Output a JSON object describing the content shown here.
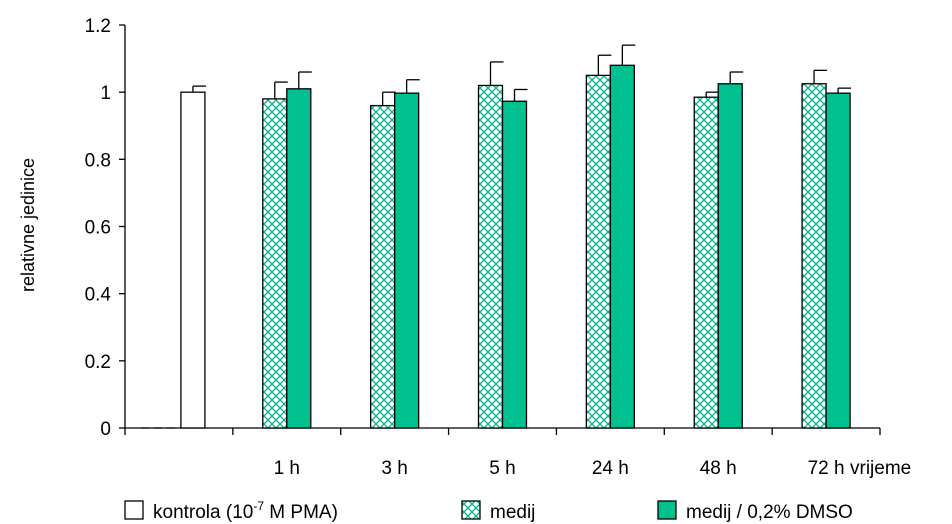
{
  "chart_data": {
    "type": "bar",
    "ylabel": "relativne jedinice",
    "xlabel": "vrijeme",
    "ylim": [
      0,
      1.2
    ],
    "yticks": [
      "0",
      "0.2",
      "0.4",
      "0.6",
      "0.8",
      "1",
      "1.2"
    ],
    "categories": [
      "",
      "1 h",
      "3 h",
      "5 h",
      "24 h",
      "48 h",
      "72 h"
    ],
    "control": {
      "value": 1.0,
      "error": 0.018
    },
    "series": [
      {
        "name": "medij",
        "values": [
          null,
          0.98,
          0.96,
          1.02,
          1.05,
          0.985,
          1.025
        ],
        "errors": [
          null,
          0.05,
          0.04,
          0.07,
          0.06,
          0.015,
          0.04
        ]
      },
      {
        "name": "medij / 0,2% DMSO",
        "values": [
          null,
          1.01,
          0.997,
          0.973,
          1.08,
          1.025,
          0.997
        ],
        "errors": [
          null,
          0.05,
          0.04,
          0.035,
          0.06,
          0.035,
          0.015
        ]
      }
    ],
    "legend": {
      "position": "bottom",
      "control_label": {
        "prefix": "kontrola  (10",
        "sup": "-7",
        "suffix": " M PMA)"
      }
    },
    "colors": {
      "control": "#ffffff",
      "medij_pattern": "#00b38a",
      "dmso": "#00c08f",
      "outline": "#000000"
    },
    "grid": false
  }
}
